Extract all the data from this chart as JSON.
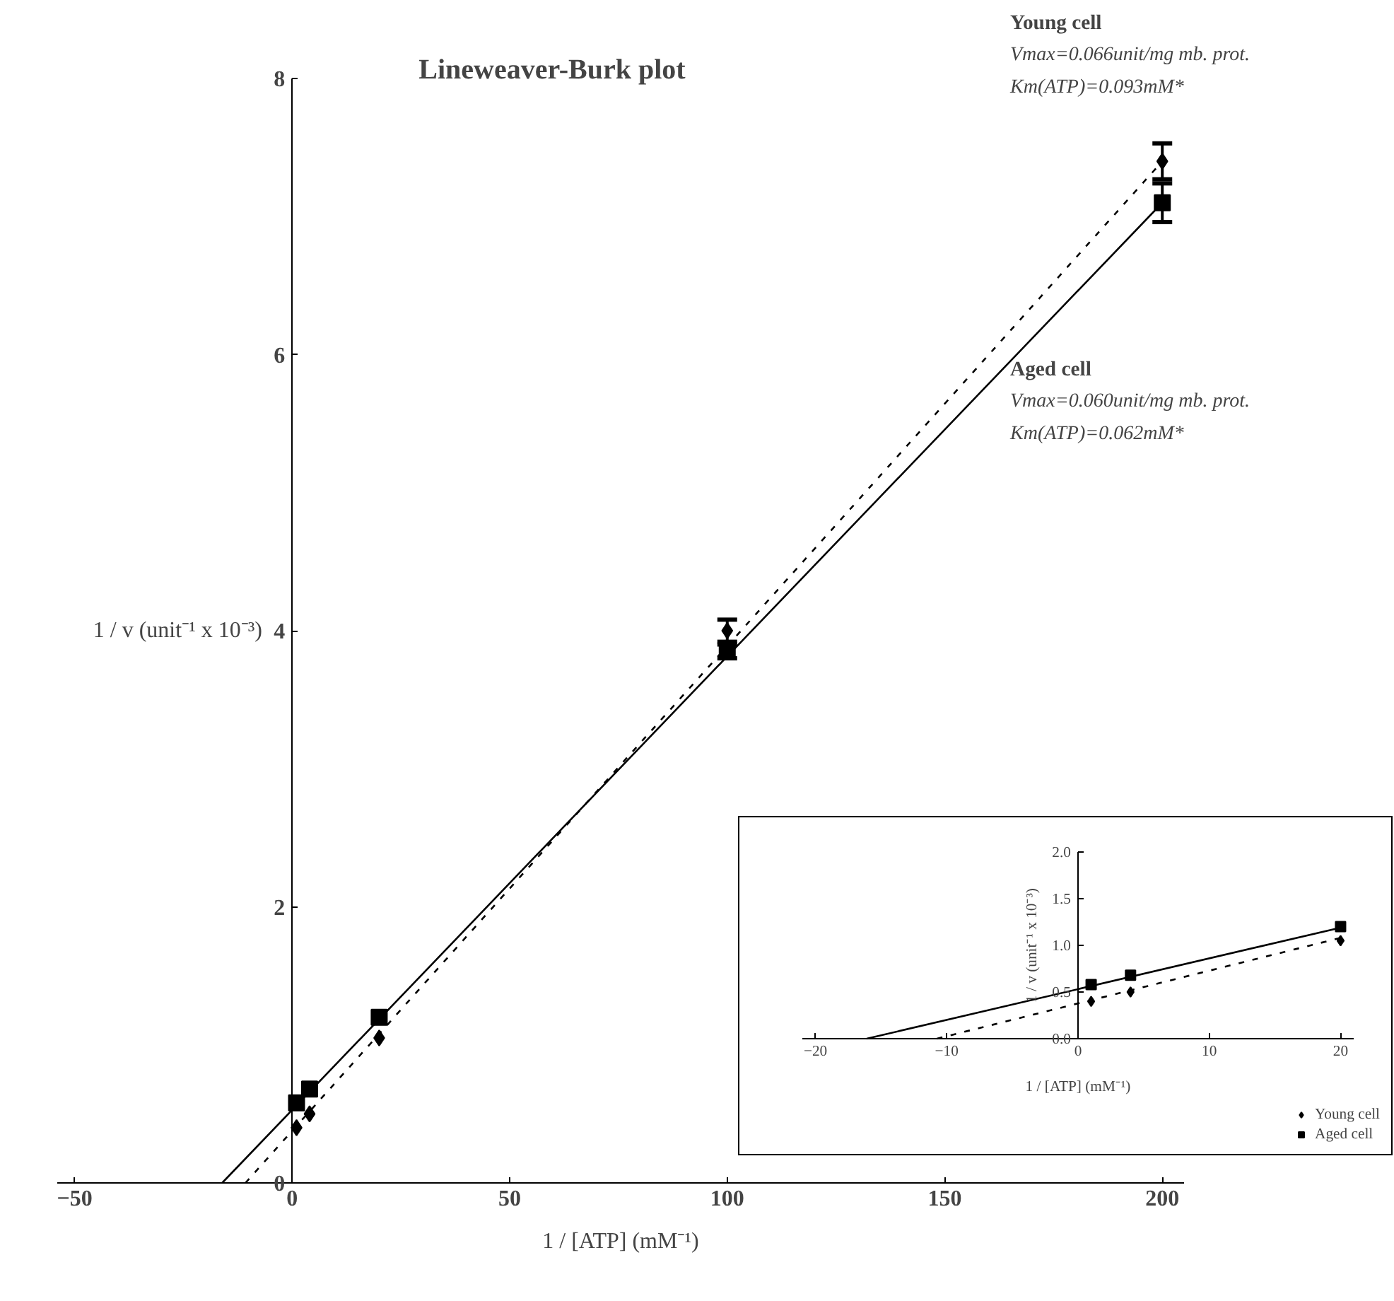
{
  "chart_data": [
    {
      "type": "scatter",
      "title": "Lineweaver-Burk plot",
      "xlabel": "1 / [ATP] (mM⁻¹)",
      "ylabel": "1 / v (unit⁻¹ x 10⁻³)",
      "annotations": [
        "Young cell",
        "Vmax=0.066unit/mg mb. prot.",
        "Km(ATP)=0.093mM*",
        "Aged cell",
        "Vmax=0.060unit/mg mb. prot.",
        "Km(ATP)=0.062mM*"
      ],
      "xlim": [
        -54,
        205
      ],
      "ylim": [
        0,
        8
      ],
      "xticks": [
        -50,
        0,
        50,
        100,
        150,
        200
      ],
      "yticks": [
        0,
        2,
        4,
        6,
        8
      ],
      "series": [
        {
          "marker": "diamond",
          "color": "#000000",
          "x": [
            1,
            4,
            20,
            100,
            200
          ],
          "values": [
            0.4,
            0.5,
            1.05,
            4.0,
            7.4
          ],
          "errors": [
            null,
            null,
            null,
            0.08,
            0.13
          ]
        },
        {
          "marker": "square",
          "color": "#000000",
          "x": [
            1,
            4,
            20,
            100,
            200
          ],
          "values": [
            0.58,
            0.68,
            1.2,
            3.85,
            7.1
          ],
          "errors": [
            null,
            null,
            null,
            0.05,
            0.14
          ]
        },
        {
          "type": "line",
          "line_style": "dashed",
          "color": "#000000",
          "x": [
            -10.75,
            200
          ],
          "values": [
            0,
            7.4
          ]
        },
        {
          "type": "line",
          "line_style": "solid",
          "color": "#000000",
          "x": [
            -16.1,
            200
          ],
          "values": [
            0,
            7.1
          ]
        }
      ]
    },
    {
      "type": "scatter",
      "xlabel": "1 / [ATP] (mM⁻¹)",
      "ylabel": "1 / v (unit⁻¹ x 10⁻³)",
      "legend": "bottom right",
      "xlim": [
        -21,
        21
      ],
      "ylim": [
        0,
        2
      ],
      "xticks": [
        -20,
        -10,
        0,
        10,
        20
      ],
      "yticks": [
        {
          "value": 0,
          "label": "0.0"
        },
        {
          "value": 0.5,
          "label": "0.5"
        },
        {
          "value": 1,
          "label": "1.0"
        },
        {
          "value": 1.5,
          "label": "1.5"
        },
        {
          "value": 2,
          "label": "2.0"
        }
      ],
      "series": [
        {
          "name": "Young cell",
          "marker": "diamond",
          "color": "#000000",
          "x": [
            1,
            4,
            20
          ],
          "values": [
            0.4,
            0.5,
            1.05
          ]
        },
        {
          "name": "Aged cell",
          "marker": "square",
          "color": "#000000",
          "x": [
            1,
            4,
            20
          ],
          "values": [
            0.58,
            0.68,
            1.2
          ]
        },
        {
          "type": "line",
          "line_style": "dashed",
          "color": "#000000",
          "x": [
            -10.75,
            20
          ],
          "values": [
            0,
            1.08
          ]
        },
        {
          "type": "line",
          "line_style": "solid",
          "color": "#000000",
          "x": [
            -16.1,
            20
          ],
          "values": [
            0,
            1.19
          ]
        }
      ]
    }
  ]
}
